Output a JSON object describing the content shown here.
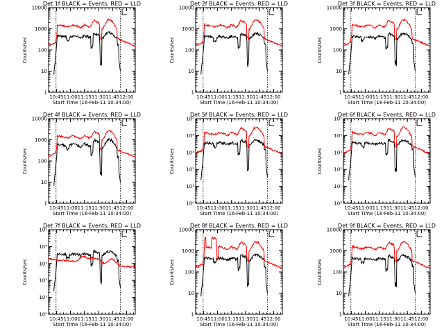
{
  "chart_data": [
    {
      "type": "line",
      "title": "Det 1f BLACK = Events, RED = LLD",
      "xlabel": "Start Time (16-Feb-11 10:34:00)",
      "ylabel": "Counts/sec",
      "y_scale": "log",
      "ylim": [
        1,
        10000
      ],
      "xlim": [
        0,
        99
      ],
      "x_ticks": [
        "10:45",
        "11:00",
        "11:15",
        "11:30",
        "11:45",
        "12:00"
      ],
      "y_ticks": [
        "1",
        "10",
        "100",
        "1000",
        "10000"
      ],
      "legend": "in title",
      "series": [
        {
          "color": "#000000",
          "shape": "black",
          "level": 0.6
        },
        {
          "color": "#ff0000",
          "shape": "red",
          "level": 1.0
        }
      ]
    },
    {
      "type": "line",
      "title": "Det 2f BLACK = Events, RED = LLD",
      "xlabel": "Start Time (16-Feb-11 10:34:00)",
      "ylabel": "Counts/sec",
      "y_scale": "log",
      "ylim": [
        1,
        10000
      ],
      "xlim": [
        0,
        99
      ],
      "x_ticks": [
        "10:45",
        "11:00",
        "11:15",
        "11:30",
        "11:45",
        "12:00"
      ],
      "y_ticks": [
        "1",
        "10",
        "100",
        "1000",
        "10000"
      ],
      "legend": "in title",
      "series": [
        {
          "color": "#000000",
          "shape": "black",
          "level": 0.55
        },
        {
          "color": "#ff0000",
          "shape": "red",
          "level": 1.0
        }
      ]
    },
    {
      "type": "line",
      "title": "Det 3f BLACK = Events, RED = LLD",
      "xlabel": "Start Time (16-Feb-11 10:34:00)",
      "ylabel": "Counts/sec",
      "y_scale": "log",
      "ylim": [
        1,
        10000
      ],
      "xlim": [
        0,
        99
      ],
      "x_ticks": [
        "10:45",
        "11:00",
        "11:15",
        "11:30",
        "11:45",
        "12:00"
      ],
      "y_ticks": [
        "1",
        "10",
        "100",
        "1000",
        "10000"
      ],
      "legend": "in title",
      "series": [
        {
          "color": "#000000",
          "shape": "black",
          "level": 0.55
        },
        {
          "color": "#ff0000",
          "shape": "red",
          "level": 1.0
        }
      ]
    },
    {
      "type": "line",
      "title": "Det 4f BLACK = Events, RED = LLD",
      "xlabel": "Start Time (16-Feb-11 10:34:00)",
      "ylabel": "Counts/sec",
      "y_scale": "log",
      "ylim": [
        1,
        10000
      ],
      "xlim": [
        0,
        99
      ],
      "x_ticks": [
        "10:45",
        "11:00",
        "11:15",
        "11:30",
        "11:45",
        "12:00"
      ],
      "y_ticks": [
        "1",
        "10",
        "100",
        "1000",
        "10000"
      ],
      "legend": "in title",
      "series": [
        {
          "color": "#000000",
          "shape": "black",
          "level": 0.9
        },
        {
          "color": "#ff0000",
          "shape": "red",
          "level": 1.0
        }
      ]
    },
    {
      "type": "line",
      "title": "Det 5f BLACK = Events, RED = LLD",
      "xlabel": "Start Time (16-Feb-11 10:34:00)",
      "ylabel": "Counts/sec",
      "y_scale": "log",
      "ylim": [
        1,
        100000
      ],
      "xlim": [
        0,
        99
      ],
      "x_ticks": [
        "10:45",
        "11:00",
        "11:15",
        "11:30",
        "11:45",
        "12:00"
      ],
      "y_ticks": [
        "10⁰",
        "10¹",
        "10²",
        "10³",
        "10⁴",
        "10⁵"
      ],
      "legend": "in title",
      "series": [
        {
          "color": "#000000",
          "shape": "black",
          "level": 0.5
        },
        {
          "color": "#ff0000",
          "shape": "red",
          "level": 1.0
        }
      ]
    },
    {
      "type": "line",
      "title": "Det 6f BLACK = Events, RED = LLD",
      "xlabel": "Start Time (16-Feb-11 10:34:00)",
      "ylabel": "Counts/sec",
      "y_scale": "log",
      "ylim": [
        1,
        100000
      ],
      "xlim": [
        0,
        99
      ],
      "x_ticks": [
        "10:45",
        "11:00",
        "11:15",
        "11:30",
        "11:45",
        "12:00"
      ],
      "y_ticks": [
        "10⁰",
        "10¹",
        "10²",
        "10³",
        "10⁴",
        "10⁵"
      ],
      "legend": "in title",
      "series": [
        {
          "color": "#000000",
          "shape": "black",
          "level": 0.5
        },
        {
          "color": "#ff0000",
          "shape": "red",
          "level": 1.0
        }
      ]
    },
    {
      "type": "line",
      "title": "Det 7f BLACK = Events, RED = LLD",
      "xlabel": "Start Time (16-Feb-11 10:34:00)",
      "ylabel": "Counts/sec",
      "y_scale": "log",
      "ylim": [
        1,
        100000
      ],
      "xlim": [
        0,
        99
      ],
      "x_ticks": [
        "10:45",
        "11:00",
        "11:15",
        "11:30",
        "11:45",
        "12:00"
      ],
      "y_ticks": [
        "10⁰",
        "10¹",
        "10²",
        "10³",
        "10⁴",
        "10⁵"
      ],
      "legend": "in title",
      "series": [
        {
          "color": "#000000",
          "shape": "black",
          "level": 0.5
        },
        {
          "color": "#ff0000",
          "shape": "flat",
          "level": 1.0
        }
      ]
    },
    {
      "type": "line",
      "title": "Det 8f BLACK = Events, RED = LLD",
      "xlabel": "Start Time (16-Feb-11 10:34:00)",
      "ylabel": "Counts/sec",
      "y_scale": "log",
      "ylim": [
        1,
        10000
      ],
      "xlim": [
        0,
        99
      ],
      "x_ticks": [
        "10:45",
        "11:00",
        "11:15",
        "11:30",
        "11:45",
        "12:00"
      ],
      "y_ticks": [
        "1",
        "10",
        "100",
        "1000",
        "10000"
      ],
      "legend": "in title",
      "series": [
        {
          "color": "#000000",
          "shape": "black",
          "level": 0.6
        },
        {
          "color": "#ff0000",
          "shape": "spiky",
          "level": 1.0
        }
      ]
    },
    {
      "type": "line",
      "title": "Det 9f BLACK = Events, RED = LLD",
      "xlabel": "Start Time (16-Feb-11 10:34:00)",
      "ylabel": "Counts/sec",
      "y_scale": "log",
      "ylim": [
        1,
        10000
      ],
      "xlim": [
        0,
        99
      ],
      "x_ticks": [
        "10:45",
        "11:00",
        "11:15",
        "11:30",
        "11:45",
        "12:00"
      ],
      "y_ticks": [
        "1",
        "10",
        "100",
        "1000",
        "10000"
      ],
      "legend": "in title",
      "series": [
        {
          "color": "#000000",
          "shape": "black",
          "level": 0.55
        },
        {
          "color": "#ff0000",
          "shape": "red",
          "level": 1.0
        }
      ]
    }
  ]
}
